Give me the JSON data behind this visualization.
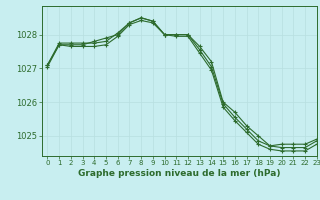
{
  "title": "Graphe pression niveau de la mer (hPa)",
  "background_color": "#c8eef0",
  "grid_color": "#b8dfe0",
  "line_color": "#2d6b2d",
  "marker_color": "#2d6b2d",
  "xlim": [
    -0.5,
    23
  ],
  "ylim": [
    1024.4,
    1028.85
  ],
  "yticks": [
    1025,
    1026,
    1027,
    1028
  ],
  "xticks": [
    0,
    1,
    2,
    3,
    4,
    5,
    6,
    7,
    8,
    9,
    10,
    11,
    12,
    13,
    14,
    15,
    16,
    17,
    18,
    19,
    20,
    21,
    22,
    23
  ],
  "series": [
    {
      "x": [
        0,
        1,
        2,
        3,
        4,
        5,
        6,
        7,
        8,
        9,
        10,
        11,
        12,
        13,
        14,
        15,
        16,
        17,
        18,
        19,
        20,
        21,
        22,
        23
      ],
      "y": [
        1027.1,
        1027.7,
        1027.7,
        1027.7,
        1027.8,
        1027.9,
        1028.0,
        1028.35,
        1028.5,
        1028.4,
        1028.0,
        1028.0,
        1028.0,
        1027.65,
        1027.2,
        1026.0,
        1025.7,
        1025.3,
        1025.0,
        1024.7,
        1024.75,
        1024.75,
        1024.75,
        1024.9
      ]
    },
    {
      "x": [
        0,
        1,
        2,
        3,
        4,
        5,
        6,
        7,
        8,
        9,
        10,
        11,
        12,
        13,
        14,
        15,
        16,
        17,
        18,
        19,
        20,
        21,
        22,
        23
      ],
      "y": [
        1027.1,
        1027.75,
        1027.75,
        1027.75,
        1027.75,
        1027.8,
        1028.05,
        1028.35,
        1028.5,
        1028.4,
        1028.0,
        1028.0,
        1028.0,
        1027.55,
        1027.05,
        1025.95,
        1025.55,
        1025.2,
        1024.85,
        1024.7,
        1024.65,
        1024.65,
        1024.65,
        1024.85
      ]
    },
    {
      "x": [
        0,
        1,
        2,
        3,
        4,
        5,
        6,
        7,
        8,
        9,
        10,
        11,
        12,
        13,
        14,
        15,
        16,
        17,
        18,
        19,
        20,
        21,
        22,
        23
      ],
      "y": [
        1027.05,
        1027.7,
        1027.65,
        1027.65,
        1027.65,
        1027.7,
        1027.95,
        1028.3,
        1028.42,
        1028.35,
        1028.0,
        1027.95,
        1027.95,
        1027.45,
        1026.95,
        1025.85,
        1025.45,
        1025.1,
        1024.75,
        1024.6,
        1024.55,
        1024.55,
        1024.55,
        1024.75
      ]
    }
  ]
}
